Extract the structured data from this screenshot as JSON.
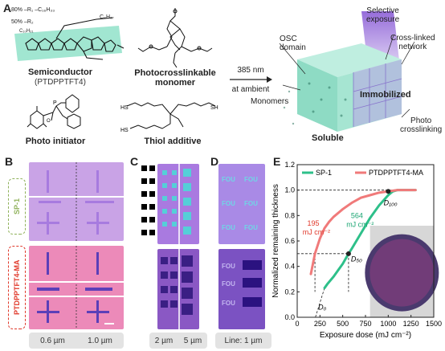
{
  "panelA": {
    "label": "A",
    "semiconductor_name": "Semiconductor",
    "semiconductor_sub": "(PTDPPTFT4)",
    "r1": "80% –R₁ –C₁₆H₃₃",
    "r2": "50% –R₂",
    "r_c8": "C₈H₁₇",
    "r_c10": "C₁₀H₂₁",
    "monomer_name": "Photocrosslinkable",
    "monomer_name2": "monomer",
    "initiator_name": "Photo initiator",
    "thiol_name": "Thiol additive",
    "arrow_top": "385 nm",
    "arrow_bottom": "at ambient",
    "osc_domain": "OSC\ndomain",
    "selective_exposure": "Selective\nexposure",
    "crosslinked_network": "Cross-linked\nnetwork",
    "monomers": "Monomers",
    "immobilized": "Immobilized",
    "photo_crosslinking": "Photo\ncrosslinking",
    "soluble": "Soluble"
  },
  "panelB": {
    "label": "B",
    "sp1": "SP-1",
    "ptdpp": "PTDPPTFT4-MA",
    "foot_left": "0.6 µm",
    "foot_right": "1.0 µm"
  },
  "panelC": {
    "label": "C",
    "foot_left": "2 µm",
    "foot_right": "5 µm"
  },
  "panelD": {
    "label": "D",
    "foot": "Line: 1 µm"
  },
  "panelE": {
    "label": "E",
    "ann_195": "195",
    "ann_195_unit": "mJ cm⁻²",
    "ann_564": "564",
    "ann_564_unit": "mJ cm⁻²",
    "d100": "D₁₀₀",
    "d50": "D₅₀",
    "d0": "D₀"
  },
  "chart_data": {
    "type": "line",
    "title": "",
    "xlabel": "Exposure dose (mJ cm⁻²)",
    "ylabel": "Normalized remaining thickness",
    "xlim": [
      0,
      1500
    ],
    "ylim": [
      0.0,
      1.2
    ],
    "xticks": [
      0,
      250,
      500,
      750,
      1000,
      1250,
      1500
    ],
    "yticks": [
      0.0,
      0.2,
      0.4,
      0.6,
      0.8,
      1.0,
      1.2
    ],
    "legend_position": "top",
    "series": [
      {
        "name": "SP-1",
        "color": "#2ec08a",
        "x": [
          300,
          330,
          400,
          450,
          500,
          564,
          600,
          700,
          800,
          900,
          1000,
          1050,
          1100,
          1200,
          1300
        ],
        "y": [
          0.23,
          0.26,
          0.32,
          0.37,
          0.42,
          0.5,
          0.54,
          0.66,
          0.78,
          0.88,
          0.96,
          0.99,
          1.0,
          1.0,
          1.0
        ]
      },
      {
        "name": "PTDPPTFT4-MA",
        "color": "#f07a7a",
        "x": [
          150,
          195,
          250,
          300,
          350,
          400,
          500,
          600,
          700,
          800,
          900,
          1000,
          1100,
          1200,
          1300
        ],
        "y": [
          0.34,
          0.5,
          0.62,
          0.7,
          0.75,
          0.79,
          0.85,
          0.9,
          0.94,
          0.96,
          0.98,
          0.99,
          1.0,
          1.0,
          1.0
        ]
      }
    ]
  }
}
